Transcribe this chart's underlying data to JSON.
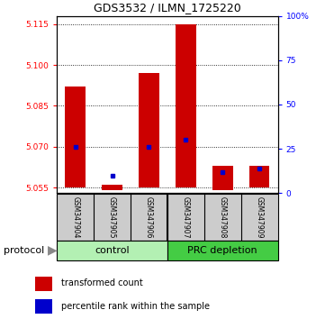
{
  "title": "GDS3532 / ILMN_1725220",
  "samples": [
    "GSM347904",
    "GSM347905",
    "GSM347906",
    "GSM347907",
    "GSM347908",
    "GSM347909"
  ],
  "red_bottom": [
    5.055,
    5.054,
    5.055,
    5.055,
    5.054,
    5.055
  ],
  "red_top": [
    5.092,
    5.056,
    5.097,
    5.115,
    5.063,
    5.063
  ],
  "blue_pct": [
    26,
    10,
    26,
    30,
    12,
    14
  ],
  "ylim_min": 5.053,
  "ylim_max": 5.118,
  "yticks_red": [
    5.055,
    5.07,
    5.085,
    5.1,
    5.115
  ],
  "yticks_blue": [
    0,
    25,
    50,
    75,
    100
  ],
  "red_color": "#CC0000",
  "blue_color": "#0000CC",
  "control_color_light": "#b3f0b3",
  "control_color": "#66dd66",
  "prc_color": "#44cc44",
  "gray_color": "#cccccc",
  "legend_red": "transformed count",
  "legend_blue": "percentile rank within the sample"
}
